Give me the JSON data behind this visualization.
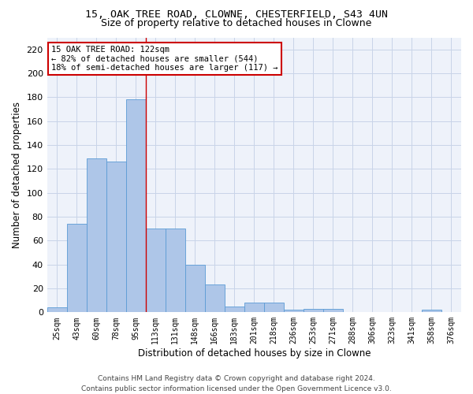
{
  "title1": "15, OAK TREE ROAD, CLOWNE, CHESTERFIELD, S43 4UN",
  "title2": "Size of property relative to detached houses in Clowne",
  "xlabel": "Distribution of detached houses by size in Clowne",
  "ylabel": "Number of detached properties",
  "footer1": "Contains HM Land Registry data © Crown copyright and database right 2024.",
  "footer2": "Contains public sector information licensed under the Open Government Licence v3.0.",
  "categories": [
    "25sqm",
    "43sqm",
    "60sqm",
    "78sqm",
    "95sqm",
    "113sqm",
    "131sqm",
    "148sqm",
    "166sqm",
    "183sqm",
    "201sqm",
    "218sqm",
    "236sqm",
    "253sqm",
    "271sqm",
    "288sqm",
    "306sqm",
    "323sqm",
    "341sqm",
    "358sqm",
    "376sqm"
  ],
  "values": [
    4,
    74,
    129,
    126,
    178,
    70,
    70,
    40,
    23,
    5,
    8,
    8,
    2,
    3,
    3,
    0,
    0,
    0,
    0,
    2,
    0
  ],
  "bar_color": "#aec6e8",
  "bar_edge_color": "#5b9bd5",
  "grid_color": "#c8d4e8",
  "background_color": "#eef2fa",
  "annotation_text": "15 OAK TREE ROAD: 122sqm\n← 82% of detached houses are smaller (544)\n18% of semi-detached houses are larger (117) →",
  "property_line_index": 5,
  "ylim": [
    0,
    230
  ],
  "yticks": [
    0,
    20,
    40,
    60,
    80,
    100,
    120,
    140,
    160,
    180,
    200,
    220
  ],
  "annotation_box_color": "#ffffff",
  "annotation_box_edge": "#cc0000",
  "property_line_color": "#cc0000",
  "title1_fontsize": 9.5,
  "title2_fontsize": 9,
  "tick_label_fontsize": 7,
  "ylabel_fontsize": 8.5,
  "xlabel_fontsize": 8.5,
  "footer_fontsize": 6.5,
  "annot_fontsize": 7.5
}
